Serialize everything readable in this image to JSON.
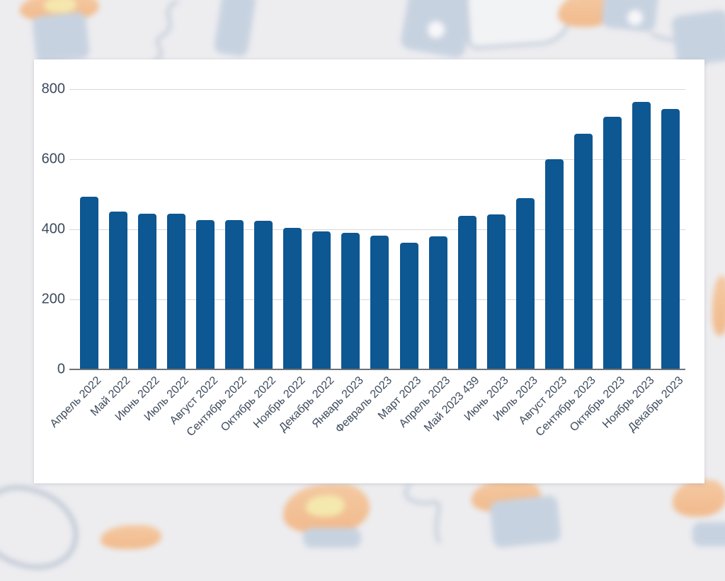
{
  "chart_data": {
    "type": "bar",
    "categories": [
      "Апрель 2022",
      "Май 2022",
      "Июнь 2022",
      "Июль 2022",
      "Август 2022",
      "Сентябрь 2022",
      "Октябрь 2022",
      "Ноябрь 2022",
      "Декабрь 2022",
      "Январь 2023",
      "Февраль 2023",
      "Март 2023",
      "Апрель 2023",
      "Май 2023 439",
      "Июнь 2023",
      "Июль 2023",
      "Август 2023",
      "Сентябрь 2023",
      "Октябрь 2023",
      "Ноябрь 2023",
      "Декабрь 2023"
    ],
    "values": [
      492,
      450,
      444,
      444,
      427,
      427,
      425,
      405,
      394,
      390,
      382,
      362,
      379,
      439,
      442,
      489,
      600,
      673,
      722,
      764,
      744
    ],
    "title": "",
    "xlabel": "",
    "ylabel": "",
    "ylim": [
      0,
      800
    ],
    "yticks": [
      0,
      200,
      400,
      600,
      800
    ],
    "grid": true,
    "legend_position": "none",
    "bar_color": "#0d5792"
  },
  "colors": {
    "bar": "#0d5792",
    "axis_text": "#3d4a5c",
    "gridline": "#d9d9d9",
    "zero_line": "#6f7276",
    "page_bg": "#ededf0",
    "card_bg": "#ffffff",
    "decor_blue": "#b9c8da",
    "decor_orange": "#f6b77d",
    "decor_yellow": "#f8e694",
    "decor_outline": "#b7c3d2",
    "decor_grey": "#aab6c6"
  }
}
